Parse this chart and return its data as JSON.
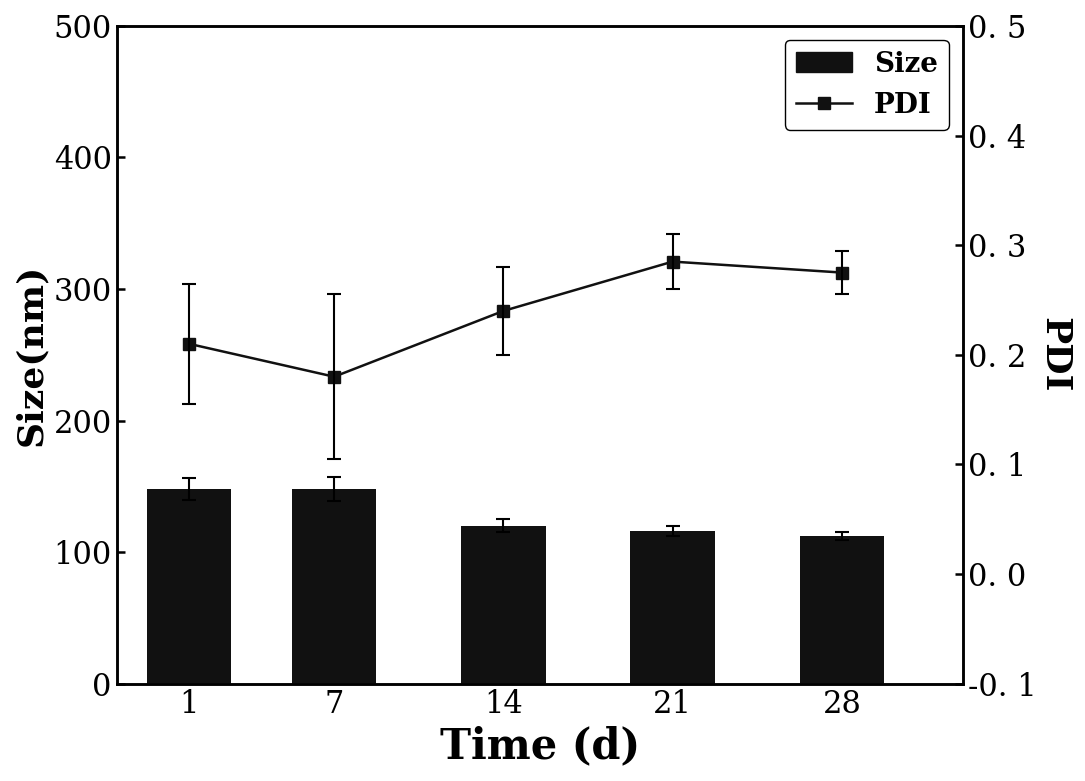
{
  "x_positions": [
    1,
    7,
    14,
    21,
    28
  ],
  "bar_heights": [
    148,
    148,
    120,
    116,
    112
  ],
  "bar_errors": [
    8,
    9,
    5,
    4,
    3
  ],
  "pdi_values": [
    0.21,
    0.18,
    0.24,
    0.285,
    0.275
  ],
  "pdi_errors": [
    0.055,
    0.075,
    0.04,
    0.025,
    0.02
  ],
  "bar_color": "#111111",
  "line_color": "#111111",
  "left_ylim": [
    0,
    500
  ],
  "left_yticks": [
    0,
    100,
    200,
    300,
    400,
    500
  ],
  "right_ylim": [
    -0.1,
    0.5
  ],
  "right_yticks": [
    -0.1,
    0.0,
    0.1,
    0.2,
    0.3,
    0.4,
    0.5
  ],
  "right_yticklabels": [
    "-0. 1",
    "0. 0",
    "0. 1",
    "0. 2",
    "0. 3",
    "0. 4",
    "0. 5"
  ],
  "xlabel": "Time (d)",
  "ylabel_left": "Size(nm)",
  "ylabel_right": "PDI",
  "legend_size_label": "Size",
  "legend_pdi_label": "PDI",
  "bar_width": 3.5,
  "background_color": "#ffffff",
  "tick_fontsize": 22,
  "label_fontsize": 26,
  "xlabel_fontsize": 30,
  "legend_fontsize": 20
}
